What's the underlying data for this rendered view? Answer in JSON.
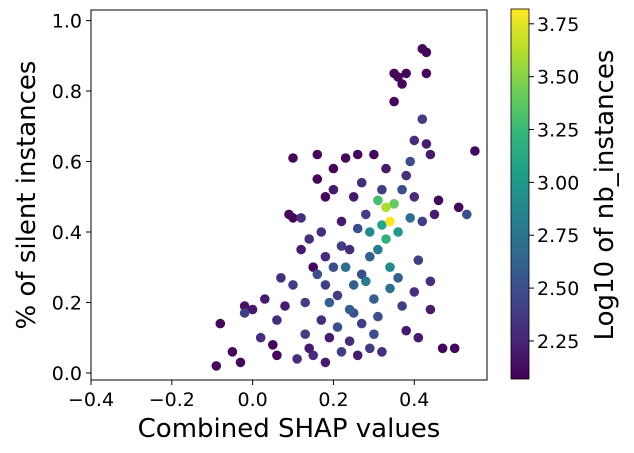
{
  "chart_data": {
    "type": "scatter",
    "title": "",
    "xlabel": "Combined SHAP values",
    "ylabel": "% of silent instances",
    "xlim": [
      -0.4,
      0.58
    ],
    "ylim": [
      -0.02,
      1.03
    ],
    "xticks": [
      -0.4,
      -0.2,
      0.0,
      0.2,
      0.4
    ],
    "xtick_labels": [
      "−0.4",
      "−0.2",
      "0.0",
      "0.2",
      "0.4"
    ],
    "yticks": [
      0.0,
      0.2,
      0.4,
      0.6,
      0.8,
      1.0
    ],
    "ytick_labels": [
      "0.0",
      "0.2",
      "0.4",
      "0.6",
      "0.8",
      "1.0"
    ],
    "grid": false,
    "colorbar": {
      "label": "Log10 of nb_instances",
      "cmap": "viridis",
      "range": [
        2.07,
        3.82
      ],
      "ticks": [
        2.25,
        2.5,
        2.75,
        3.0,
        3.25,
        3.5,
        3.75
      ],
      "tick_labels": [
        "2.25",
        "2.50",
        "2.75",
        "3.00",
        "3.25",
        "3.50",
        "3.75"
      ]
    },
    "viridis_stops": [
      "#440154",
      "#482878",
      "#3e4989",
      "#31688e",
      "#26828e",
      "#1f9e89",
      "#35b779",
      "#6ece58",
      "#b5de2b",
      "#fde725"
    ],
    "series": [
      {
        "name": "points",
        "points": [
          [
            -0.09,
            0.02,
            2.1
          ],
          [
            -0.08,
            0.14,
            2.1
          ],
          [
            -0.05,
            0.06,
            2.1
          ],
          [
            -0.03,
            0.03,
            2.1
          ],
          [
            -0.02,
            0.19,
            2.15
          ],
          [
            0.0,
            0.18,
            2.2
          ],
          [
            -0.02,
            0.17,
            2.4
          ],
          [
            0.02,
            0.1,
            2.3
          ],
          [
            0.03,
            0.21,
            2.2
          ],
          [
            0.05,
            0.08,
            2.1
          ],
          [
            0.06,
            0.15,
            2.3
          ],
          [
            0.07,
            0.27,
            2.3
          ],
          [
            0.09,
            0.45,
            2.1
          ],
          [
            0.1,
            0.44,
            2.1
          ],
          [
            0.1,
            0.61,
            2.1
          ],
          [
            0.12,
            0.35,
            2.2
          ],
          [
            0.12,
            0.44,
            2.3
          ],
          [
            0.13,
            0.2,
            2.4
          ],
          [
            0.14,
            0.07,
            2.2
          ],
          [
            0.15,
            0.3,
            2.1
          ],
          [
            0.16,
            0.55,
            2.1
          ],
          [
            0.16,
            0.62,
            2.1
          ],
          [
            0.17,
            0.4,
            2.3
          ],
          [
            0.18,
            0.25,
            2.4
          ],
          [
            0.18,
            0.5,
            2.1
          ],
          [
            0.19,
            0.1,
            2.2
          ],
          [
            0.2,
            0.58,
            2.1
          ],
          [
            0.2,
            0.3,
            2.5
          ],
          [
            0.21,
            0.22,
            2.4
          ],
          [
            0.22,
            0.43,
            2.2
          ],
          [
            0.23,
            0.61,
            2.1
          ],
          [
            0.24,
            0.35,
            2.3
          ],
          [
            0.25,
            0.5,
            2.2
          ],
          [
            0.25,
            0.17,
            2.5
          ],
          [
            0.26,
            0.05,
            2.2
          ],
          [
            0.26,
            0.62,
            2.1
          ],
          [
            0.27,
            0.28,
            2.5
          ],
          [
            0.28,
            0.45,
            2.4
          ],
          [
            0.29,
            0.33,
            2.6
          ],
          [
            0.3,
            0.21,
            2.6
          ],
          [
            0.3,
            0.62,
            2.1
          ],
          [
            0.31,
            0.49,
            3.3
          ],
          [
            0.32,
            0.42,
            3.1
          ],
          [
            0.33,
            0.47,
            3.6
          ],
          [
            0.34,
            0.43,
            3.8
          ],
          [
            0.33,
            0.38,
            3.2
          ],
          [
            0.34,
            0.3,
            2.9
          ],
          [
            0.35,
            0.48,
            3.4
          ],
          [
            0.36,
            0.4,
            3.0
          ],
          [
            0.35,
            0.77,
            2.1
          ],
          [
            0.35,
            0.85,
            2.1
          ],
          [
            0.36,
            0.84,
            2.1
          ],
          [
            0.37,
            0.82,
            2.1
          ],
          [
            0.38,
            0.85,
            2.1
          ],
          [
            0.38,
            0.56,
            2.3
          ],
          [
            0.39,
            0.44,
            2.7
          ],
          [
            0.4,
            0.66,
            2.3
          ],
          [
            0.41,
            0.32,
            2.4
          ],
          [
            0.42,
            0.72,
            2.4
          ],
          [
            0.43,
            0.65,
            2.2
          ],
          [
            0.42,
            0.92,
            2.1
          ],
          [
            0.43,
            0.91,
            2.1
          ],
          [
            0.43,
            0.85,
            2.1
          ],
          [
            0.44,
            0.62,
            2.2
          ],
          [
            0.44,
            0.26,
            2.3
          ],
          [
            0.45,
            0.45,
            2.2
          ],
          [
            0.46,
            0.49,
            2.1
          ],
          [
            0.47,
            0.07,
            2.1
          ],
          [
            0.5,
            0.07,
            2.1
          ],
          [
            0.51,
            0.47,
            2.1
          ],
          [
            0.53,
            0.45,
            2.5
          ],
          [
            0.55,
            0.63,
            2.1
          ],
          [
            0.13,
            0.11,
            2.4
          ],
          [
            0.17,
            0.15,
            2.3
          ],
          [
            0.21,
            0.13,
            2.5
          ],
          [
            0.24,
            0.09,
            2.3
          ],
          [
            0.27,
            0.14,
            2.4
          ],
          [
            0.31,
            0.16,
            2.5
          ],
          [
            0.37,
            0.19,
            2.4
          ],
          [
            0.4,
            0.23,
            2.3
          ],
          [
            0.14,
            0.38,
            2.3
          ],
          [
            0.2,
            0.52,
            2.2
          ],
          [
            0.27,
            0.54,
            2.3
          ],
          [
            0.33,
            0.58,
            2.2
          ],
          [
            0.39,
            0.6,
            2.5
          ],
          [
            0.29,
            0.4,
            2.9
          ],
          [
            0.31,
            0.35,
            2.8
          ],
          [
            0.34,
            0.24,
            2.7
          ],
          [
            0.36,
            0.27,
            2.6
          ],
          [
            0.25,
            0.25,
            2.6
          ],
          [
            0.23,
            0.3,
            2.7
          ],
          [
            0.28,
            0.26,
            2.8
          ],
          [
            0.19,
            0.2,
            2.6
          ],
          [
            0.16,
            0.28,
            2.5
          ],
          [
            0.1,
            0.25,
            2.4
          ],
          [
            0.08,
            0.19,
            2.2
          ],
          [
            0.06,
            0.05,
            2.1
          ],
          [
            0.11,
            0.04,
            2.3
          ],
          [
            0.15,
            0.05,
            2.3
          ],
          [
            0.18,
            0.03,
            2.2
          ],
          [
            0.22,
            0.06,
            2.4
          ],
          [
            0.29,
            0.07,
            2.4
          ],
          [
            0.32,
            0.06,
            2.3
          ],
          [
            0.38,
            0.12,
            2.2
          ],
          [
            0.41,
            0.1,
            2.2
          ],
          [
            0.44,
            0.18,
            2.2
          ],
          [
            0.42,
            0.43,
            2.4
          ],
          [
            0.4,
            0.5,
            2.3
          ],
          [
            0.37,
            0.52,
            2.5
          ],
          [
            0.32,
            0.52,
            2.4
          ],
          [
            0.26,
            0.41,
            2.5
          ],
          [
            0.22,
            0.36,
            2.4
          ],
          [
            0.18,
            0.33,
            2.3
          ],
          [
            0.24,
            0.18,
            2.6
          ],
          [
            0.3,
            0.11,
            2.5
          ]
        ]
      }
    ]
  }
}
